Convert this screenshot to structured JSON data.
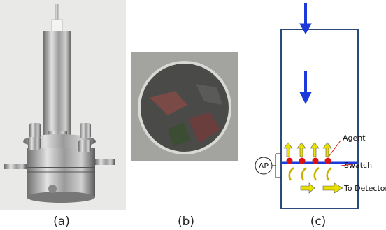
{
  "panels": [
    {
      "label": "(a)"
    },
    {
      "label": "(b)"
    },
    {
      "label": "(c)"
    }
  ],
  "diagram": {
    "labels": {
      "agent": "Agent",
      "swatch": "Swatch",
      "delta_p": "ΔP",
      "to_detector": "To Detector"
    }
  }
}
